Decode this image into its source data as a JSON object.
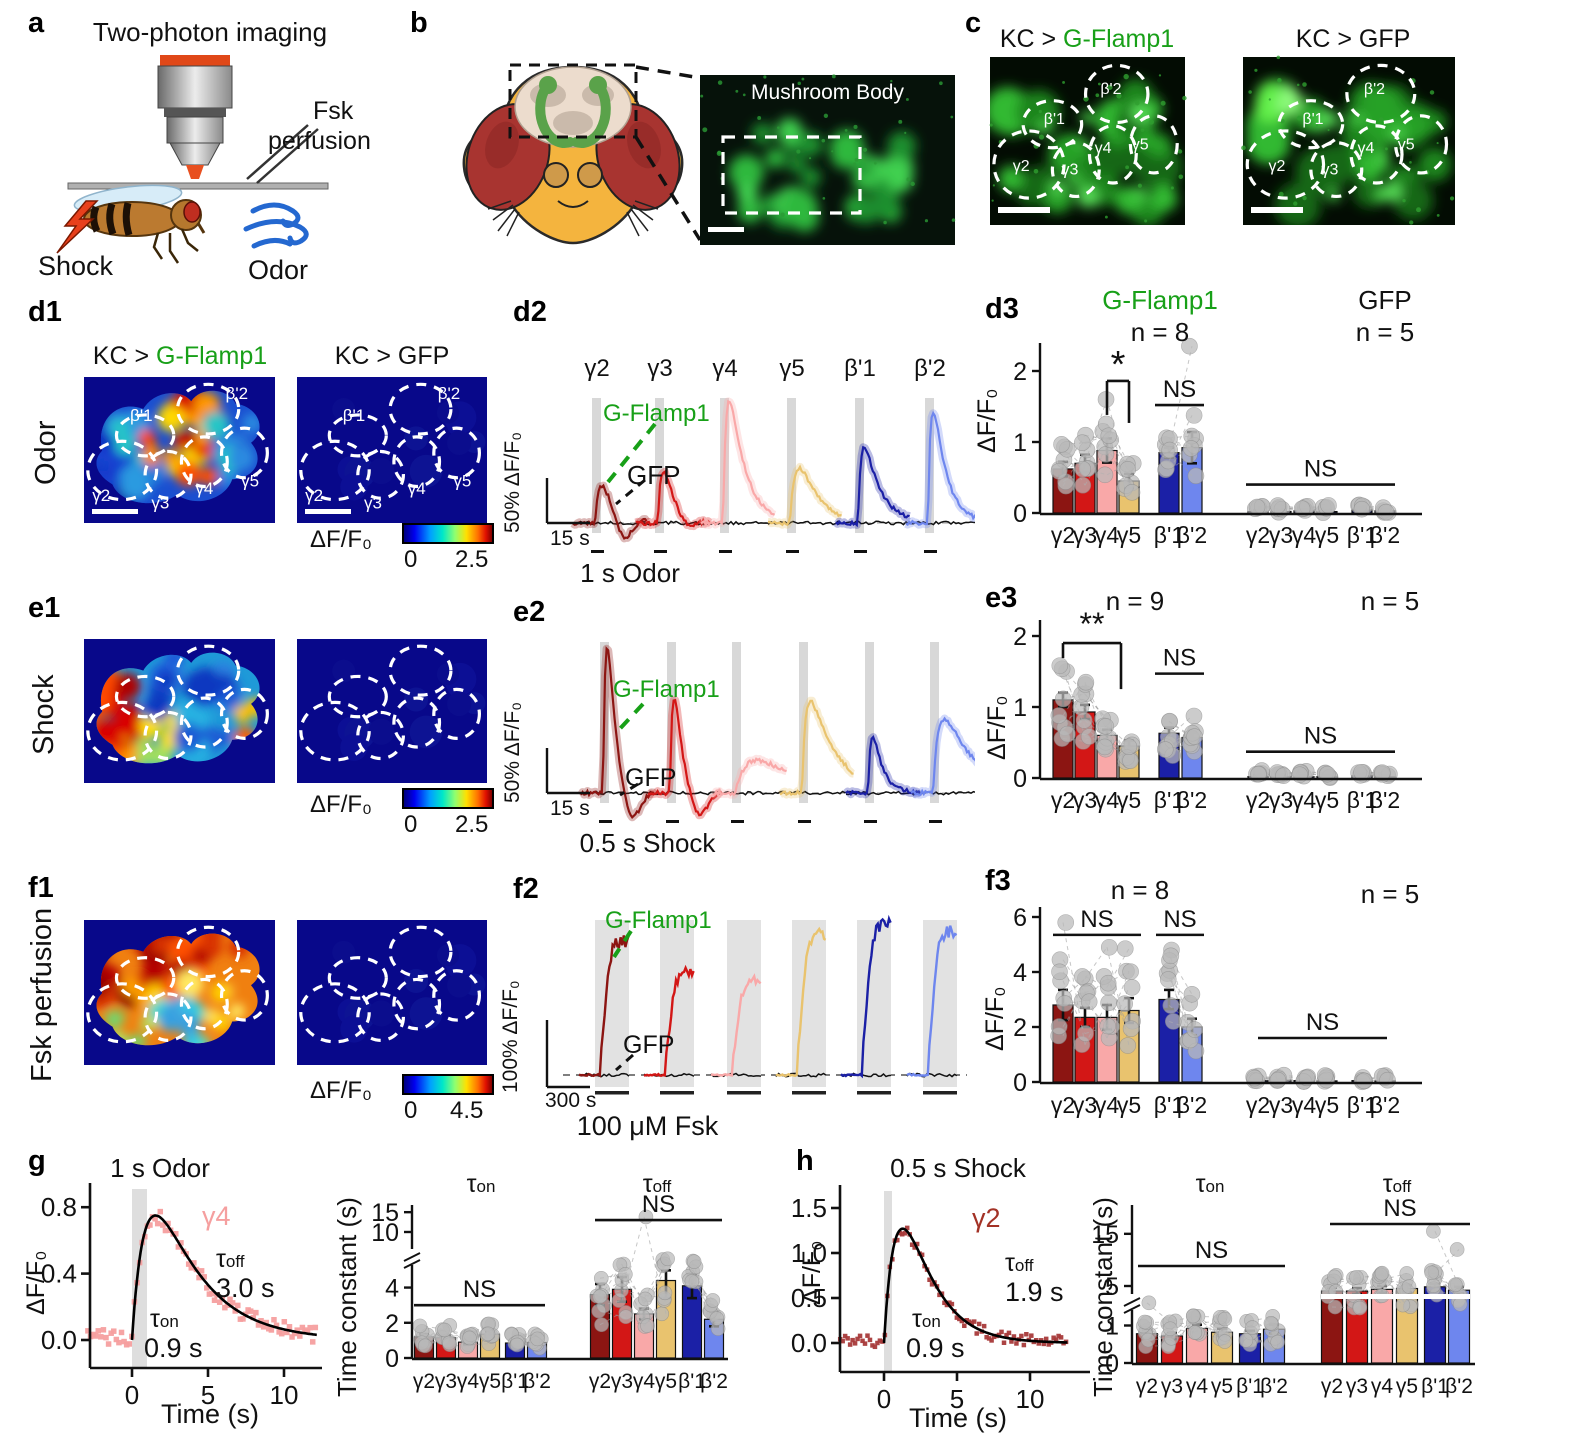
{
  "colors": {
    "green_label": "#18a018",
    "gamma2": "#8c1512",
    "gamma3": "#d31716",
    "gamma4": "#f9a8a8",
    "gamma5": "#e9c36e",
    "beta1": "#1b20a6",
    "beta2": "#6e86ee",
    "gfp_bar": "#161a6a",
    "heatmap_bg": "#08088a",
    "dot_gray": "#b9b9b9",
    "stim_gray": "#d8d8d8"
  },
  "compartments": [
    "γ2",
    "γ3",
    "γ4",
    "γ5",
    "β'1",
    "β'2"
  ],
  "panels": {
    "a": {
      "letter": "a",
      "title": "Two-photon imaging",
      "fsk_line1": "Fsk",
      "fsk_line2": "perfusion",
      "shock_label": "Shock",
      "odor_label": "Odor"
    },
    "b": {
      "letter": "b",
      "image_title": "Mushroom Body"
    },
    "c": {
      "letter": "c",
      "left_title_prefix": "KC > ",
      "left_title_sensor": "G-Flamp1",
      "right_title": "KC > GFP"
    },
    "d1": {
      "letter": "d1",
      "row_label": "Odor",
      "left_title_prefix": "KC > ",
      "left_title_sensor": "G-Flamp1",
      "right_title": "KC > GFP",
      "colorbar_label": "ΔF/F₀",
      "colorbar_min": "0",
      "colorbar_max": "2.5"
    },
    "d2": {
      "letter": "d2",
      "sensor_label": "G-Flamp1",
      "control_label": "GFP",
      "yscale_label": "50% ΔF/F₀",
      "xscale_label": "15 s",
      "stim_label": "1 s Odor"
    },
    "d3": {
      "letter": "d3",
      "left_title": "G-Flamp1",
      "left_n": "n = 8",
      "right_title": "GFP",
      "right_n": "n = 5",
      "ylabel": "ΔF/F₀"
    },
    "e1": {
      "letter": "e1",
      "row_label": "Shock",
      "colorbar_label": "ΔF/F₀",
      "colorbar_min": "0",
      "colorbar_max": "2.5"
    },
    "e2": {
      "letter": "e2",
      "sensor_label": "G-Flamp1",
      "control_label": "GFP",
      "yscale_label": "50% ΔF/F₀",
      "xscale_label": "15 s",
      "stim_label": "0.5 s Shock"
    },
    "e3": {
      "letter": "e3",
      "left_n": "n = 9",
      "right_n": "n = 5",
      "ylabel": "ΔF/F₀"
    },
    "f1": {
      "letter": "f1",
      "row_label": "Fsk perfusion",
      "colorbar_label": "ΔF/F₀",
      "colorbar_min": "0",
      "colorbar_max": "4.5"
    },
    "f2": {
      "letter": "f2",
      "sensor_label": "G-Flamp1",
      "control_label": "GFP",
      "yscale_label": "100% ΔF/F₀",
      "xscale_label": "300 s",
      "stim_label": "100 μM Fsk"
    },
    "f3": {
      "letter": "f3",
      "left_n": "n = 8",
      "right_n": "n = 5",
      "ylabel": "ΔF/F₀"
    },
    "g": {
      "letter": "g",
      "title": "1 s Odor",
      "ylabel": "ΔF/F₀",
      "xlabel": "Time (s)",
      "trace_label": "γ4",
      "tau_char": "τ",
      "sub_on": "on",
      "sub_off": "off",
      "tau_on_value": "0.9 s",
      "tau_off_value": "3.0 s",
      "right_ylabel": "Time constant (s)"
    },
    "h": {
      "letter": "h",
      "title": "0.5 s Shock",
      "ylabel": "ΔF/F₀",
      "xlabel": "Time (s)",
      "trace_label": "γ2",
      "tau_char": "τ",
      "sub_on": "on",
      "sub_off": "off",
      "tau_on_value": "0.9 s",
      "tau_off_value": "1.9 s",
      "right_ylabel": "Time constant (s)"
    }
  },
  "chart_data": [
    {
      "id": "d3_gflamp1",
      "type": "bar",
      "title": "G-Flamp1",
      "n_label": "n = 8",
      "categories": [
        "γ2",
        "γ3",
        "γ4",
        "γ5",
        "β'1",
        "β'2"
      ],
      "values": [
        0.62,
        0.7,
        0.88,
        0.45,
        0.85,
        0.92
      ],
      "errors": [
        0.1,
        0.12,
        0.17,
        0.1,
        0.07,
        0.22
      ],
      "ylabel": "ΔF/F₀",
      "ylim": [
        0,
        2.4
      ],
      "yticks": [
        "0",
        "1",
        "2"
      ],
      "sig": [
        {
          "label": "*",
          "between": [
            "γ4",
            "γ5"
          ]
        },
        {
          "label": "NS",
          "between": [
            "β'1",
            "β'2"
          ]
        }
      ]
    },
    {
      "id": "d3_gfp",
      "type": "bar",
      "title": "GFP",
      "n_label": "n = 5",
      "categories": [
        "γ2",
        "γ3",
        "γ4",
        "γ5",
        "β'1",
        "β'2"
      ],
      "values": [
        0.02,
        0.02,
        0.03,
        0.02,
        0.04,
        0.03
      ],
      "errors": [
        0.02,
        0.02,
        0.02,
        0.02,
        0.03,
        0.02
      ],
      "ylabel": "ΔF/F₀",
      "ylim": [
        0,
        2.4
      ],
      "sig": [
        {
          "label": "NS",
          "between": [
            "γ2",
            "β'2"
          ]
        }
      ]
    },
    {
      "id": "e3_gflamp1",
      "type": "bar",
      "n_label": "n = 9",
      "categories": [
        "γ2",
        "γ3",
        "γ4",
        "γ5",
        "β'1",
        "β'2"
      ],
      "values": [
        1.1,
        0.93,
        0.6,
        0.45,
        0.63,
        0.57
      ],
      "errors": [
        0.1,
        0.1,
        0.08,
        0.08,
        0.08,
        0.07
      ],
      "ylabel": "ΔF/F₀",
      "ylim": [
        0,
        2.4
      ],
      "yticks": [
        "0",
        "1",
        "2"
      ],
      "sig": [
        {
          "label": "**",
          "between": [
            "γ2",
            "γ4"
          ]
        },
        {
          "label": "NS",
          "between": [
            "β'1",
            "β'2"
          ]
        }
      ]
    },
    {
      "id": "e3_gfp",
      "type": "bar",
      "n_label": "n = 5",
      "categories": [
        "γ2",
        "γ3",
        "γ4",
        "γ5",
        "β'1",
        "β'2"
      ],
      "values": [
        0.02,
        0.02,
        0.02,
        0.02,
        0.03,
        0.02
      ],
      "errors": [
        0.02,
        0.02,
        0.02,
        0.02,
        0.02,
        0.02
      ],
      "sig": [
        {
          "label": "NS",
          "between": [
            "γ2",
            "β'2"
          ]
        }
      ]
    },
    {
      "id": "f3_gflamp1",
      "type": "bar",
      "n_label": "n = 8",
      "categories": [
        "γ2",
        "γ3",
        "γ4",
        "γ5",
        "β'1",
        "β'2"
      ],
      "values": [
        2.8,
        2.35,
        2.35,
        2.6,
        3.0,
        2.0
      ],
      "errors": [
        0.55,
        0.35,
        0.45,
        0.45,
        0.35,
        0.3
      ],
      "ylabel": "ΔF/F₀",
      "ylim": [
        0,
        6.3
      ],
      "yticks": [
        "0",
        "2",
        "4",
        "6"
      ],
      "sig": [
        {
          "label": "NS",
          "between": [
            "γ2",
            "γ5"
          ]
        },
        {
          "label": "NS",
          "between": [
            "β'1",
            "β'2"
          ]
        }
      ]
    },
    {
      "id": "f3_gfp",
      "type": "bar",
      "n_label": "n = 5",
      "categories": [
        "γ2",
        "γ3",
        "γ4",
        "γ5",
        "β'1",
        "β'2"
      ],
      "values": [
        0.05,
        0.06,
        0.05,
        0.04,
        0.05,
        0.04
      ],
      "errors": [
        0.03,
        0.03,
        0.03,
        0.03,
        0.03,
        0.03
      ],
      "sig": [
        {
          "label": "NS",
          "between": [
            "γ2",
            "β'2"
          ]
        }
      ]
    },
    {
      "id": "d2_traces",
      "type": "line",
      "stimulus": "1 s Odor",
      "categories": [
        "γ2",
        "γ3",
        "γ4",
        "γ5",
        "β'1",
        "β'2"
      ],
      "peak_dff_pct": [
        42,
        58,
        135,
        61,
        84,
        124
      ],
      "yscale": "50% ΔF/F₀",
      "xscale": "15 s"
    },
    {
      "id": "e2_traces",
      "type": "line",
      "stimulus": "0.5 s Shock",
      "categories": [
        "γ2",
        "γ3",
        "γ4",
        "γ5",
        "β'1",
        "β'2"
      ],
      "peak_dff_pct": [
        161,
        105,
        36,
        102,
        62,
        82
      ],
      "yscale": "50% ΔF/F₀",
      "xscale": "15 s"
    },
    {
      "id": "f2_traces",
      "type": "line",
      "stimulus": "100 μM Fsk",
      "categories": [
        "γ2",
        "γ3",
        "γ4",
        "γ5",
        "β'1",
        "β'2"
      ],
      "peak_dff_pct": [
        200,
        155,
        140,
        210,
        225,
        215
      ],
      "yscale": "100% ΔF/F₀",
      "xscale": "300 s"
    },
    {
      "id": "g_fit",
      "type": "scatter",
      "series": "γ4",
      "stimulus": "1 s Odor",
      "tau_on_s": 0.9,
      "tau_off_s": 3.0,
      "peak_dff": 0.75,
      "xlabel": "Time (s)",
      "ylabel": "ΔF/F₀",
      "xticks": [
        "0",
        "5",
        "10"
      ],
      "yticks": [
        "0.0",
        "0.4",
        "0.8"
      ]
    },
    {
      "id": "h_fit",
      "type": "scatter",
      "series": "γ2",
      "stimulus": "0.5 s Shock",
      "tau_on_s": 0.9,
      "tau_off_s": 1.9,
      "peak_dff": 1.27,
      "xlabel": "Time (s)",
      "ylabel": "ΔF/F₀",
      "xticks": [
        "0",
        "5",
        "10"
      ],
      "yticks": [
        "0.0",
        "0.5",
        "1.0",
        "1.5"
      ]
    },
    {
      "id": "g_time_constants",
      "type": "bar",
      "ylabel": "Time constant (s)",
      "broken_axis": true,
      "yticks": [
        "0",
        "2",
        "4",
        "10",
        "15"
      ],
      "categories": [
        "γ2",
        "γ3",
        "γ4",
        "γ5",
        "β'1",
        "β'2"
      ],
      "groups": [
        {
          "name": "τon",
          "values": [
            1.2,
            1.15,
            0.9,
            1.35,
            0.85,
            0.88
          ],
          "errors": [
            0.15,
            0.12,
            0.12,
            0.15,
            0.1,
            0.12
          ]
        },
        {
          "name": "τoff",
          "values": [
            3.6,
            3.9,
            2.5,
            4.4,
            4.1,
            2.2
          ],
          "errors": [
            0.6,
            0.7,
            0.3,
            1.0,
            0.7,
            0.4
          ]
        }
      ],
      "sig": [
        {
          "label": "NS",
          "group": "τon"
        },
        {
          "label": "NS",
          "group": "τoff"
        }
      ]
    },
    {
      "id": "h_time_constants",
      "type": "bar",
      "ylabel": "Time constant (s)",
      "broken_axis": true,
      "yticks": [
        "0",
        "1",
        "5",
        "15"
      ],
      "categories": [
        "γ2",
        "γ3",
        "γ4",
        "γ5",
        "β'1",
        "β'2"
      ],
      "groups": [
        {
          "name": "τon",
          "values": [
            0.78,
            0.72,
            0.92,
            0.82,
            0.78,
            0.9
          ],
          "errors": [
            0.1,
            0.08,
            0.1,
            0.1,
            0.08,
            0.12
          ]
        },
        {
          "name": "τoff",
          "values": [
            4.4,
            4.4,
            4.6,
            4.7,
            4.9,
            4.5
          ],
          "errors": [
            0.4,
            0.35,
            0.4,
            0.45,
            0.5,
            0.4
          ]
        }
      ],
      "sig": [
        {
          "label": "NS",
          "group": "τon"
        },
        {
          "label": "NS",
          "group": "τoff"
        }
      ]
    }
  ]
}
